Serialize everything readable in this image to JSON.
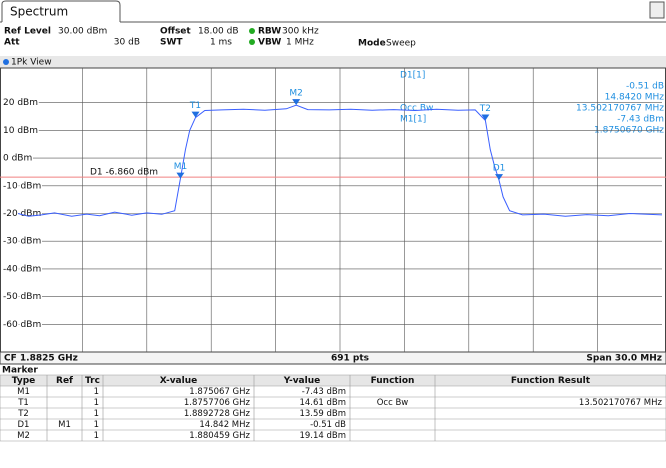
{
  "tab": "Spectrum",
  "settings": {
    "ref_level_label": "Ref Level",
    "ref_level": "30.00 dBm",
    "offset_label": "Offset",
    "offset": "18.00 dB",
    "rbw_label": "RBW",
    "rbw": "300 kHz",
    "att_label": "Att",
    "att": "30 dB",
    "swt_label": "SWT",
    "swt": "1 ms",
    "vbw_label": "VBW",
    "vbw": "1 MHz",
    "mode_label": "Mode",
    "mode": "Sweep"
  },
  "view_label": "1Pk View",
  "chart_data": {
    "type": "line",
    "series": [
      {
        "color": "#3a5fff",
        "x": [
          1867.5,
          1868,
          1868.6,
          1869.2,
          1870,
          1870.7,
          1871.3,
          1872,
          1872.8,
          1873.5,
          1874.2,
          1874.8,
          1875.067,
          1875.3,
          1875.5,
          1875.7706,
          1876.2,
          1877,
          1878,
          1879,
          1880,
          1880.459,
          1881,
          1882,
          1883,
          1884,
          1885,
          1886,
          1887,
          1888,
          1888.8,
          1889.2728,
          1889.5,
          1889.7,
          1889.909,
          1890.1,
          1890.4,
          1891,
          1892,
          1893,
          1894,
          1895,
          1896,
          1897.5
        ],
        "values": [
          -20,
          -21,
          -20.5,
          -19.8,
          -21,
          -20.2,
          -20.8,
          -19.5,
          -20.6,
          -19.8,
          -20.3,
          -19,
          -7.43,
          3,
          10,
          14.61,
          17.2,
          17.4,
          17.6,
          17.3,
          17.8,
          19.14,
          17.5,
          17.4,
          17.6,
          17.3,
          17.5,
          17.2,
          17.6,
          17.3,
          17.4,
          13.59,
          3,
          -3,
          -7.94,
          -14,
          -19,
          -20.5,
          -20.2,
          -21,
          -20.4,
          -20.8,
          -20,
          -20.5
        ]
      }
    ],
    "xlim": [
      1867.5,
      1897.5
    ],
    "ylim": [
      -70,
      30
    ],
    "yticks": [
      {
        "value": 20,
        "label": "20 dBm"
      },
      {
        "value": 10,
        "label": "10 dBm"
      },
      {
        "value": 0,
        "label": "0 dBm"
      },
      {
        "value": -10,
        "label": "-10 dBm"
      },
      {
        "value": -20,
        "label": "-20 dBm"
      },
      {
        "value": -30,
        "label": "-30 dBm"
      },
      {
        "value": -40,
        "label": "-40 dBm"
      },
      {
        "value": -50,
        "label": "-50 dBm"
      },
      {
        "value": -60,
        "label": "-60 dBm"
      }
    ],
    "grid": true,
    "limit_line": {
      "label": "D1 -6.860 dBm",
      "value": -6.86,
      "color": "#f08080"
    },
    "markers": [
      {
        "label": "M1",
        "x": 1875.067,
        "y": -7.43
      },
      {
        "label": "T1",
        "x": 1875.7706,
        "y": 14.61
      },
      {
        "label": "M2",
        "x": 1880.459,
        "y": 19.14
      },
      {
        "label": "T2",
        "x": 1889.2728,
        "y": 13.59
      },
      {
        "label": "D1",
        "x": 1889.909,
        "y": -7.94
      }
    ],
    "occ_bw_label": "Occ Bw"
  },
  "marker_info": {
    "d1_name": "D1[1]",
    "d1_value": "-0.51 dB",
    "d1_freq": "14.8420 MHz",
    "occ_bw": "13.502170767 MHz",
    "m1_name": "M1[1]",
    "m1_value": "-7.43 dBm",
    "m1_freq": "1.8750670 GHz"
  },
  "footer": {
    "cf": "CF 1.8825 GHz",
    "points": "691 pts",
    "span": "Span 30.0 MHz"
  },
  "marker_table": {
    "title": "Marker",
    "columns": [
      "Type",
      "Ref",
      "Trc",
      "X-value",
      "Y-value",
      "Function",
      "Function Result"
    ],
    "rows": [
      [
        "M1",
        "",
        "1",
        "1.875067 GHz",
        "-7.43 dBm",
        "",
        ""
      ],
      [
        "T1",
        "",
        "1",
        "1.8757706 GHz",
        "14.61 dBm",
        "Occ Bw",
        "13.502170767 MHz"
      ],
      [
        "T2",
        "",
        "1",
        "1.8892728 GHz",
        "13.59 dBm",
        "",
        ""
      ],
      [
        "D1",
        "M1",
        "1",
        "14.842 MHz",
        "-0.51 dB",
        "",
        ""
      ],
      [
        "M2",
        "",
        "1",
        "1.880459 GHz",
        "19.14 dBm",
        "",
        ""
      ]
    ]
  }
}
